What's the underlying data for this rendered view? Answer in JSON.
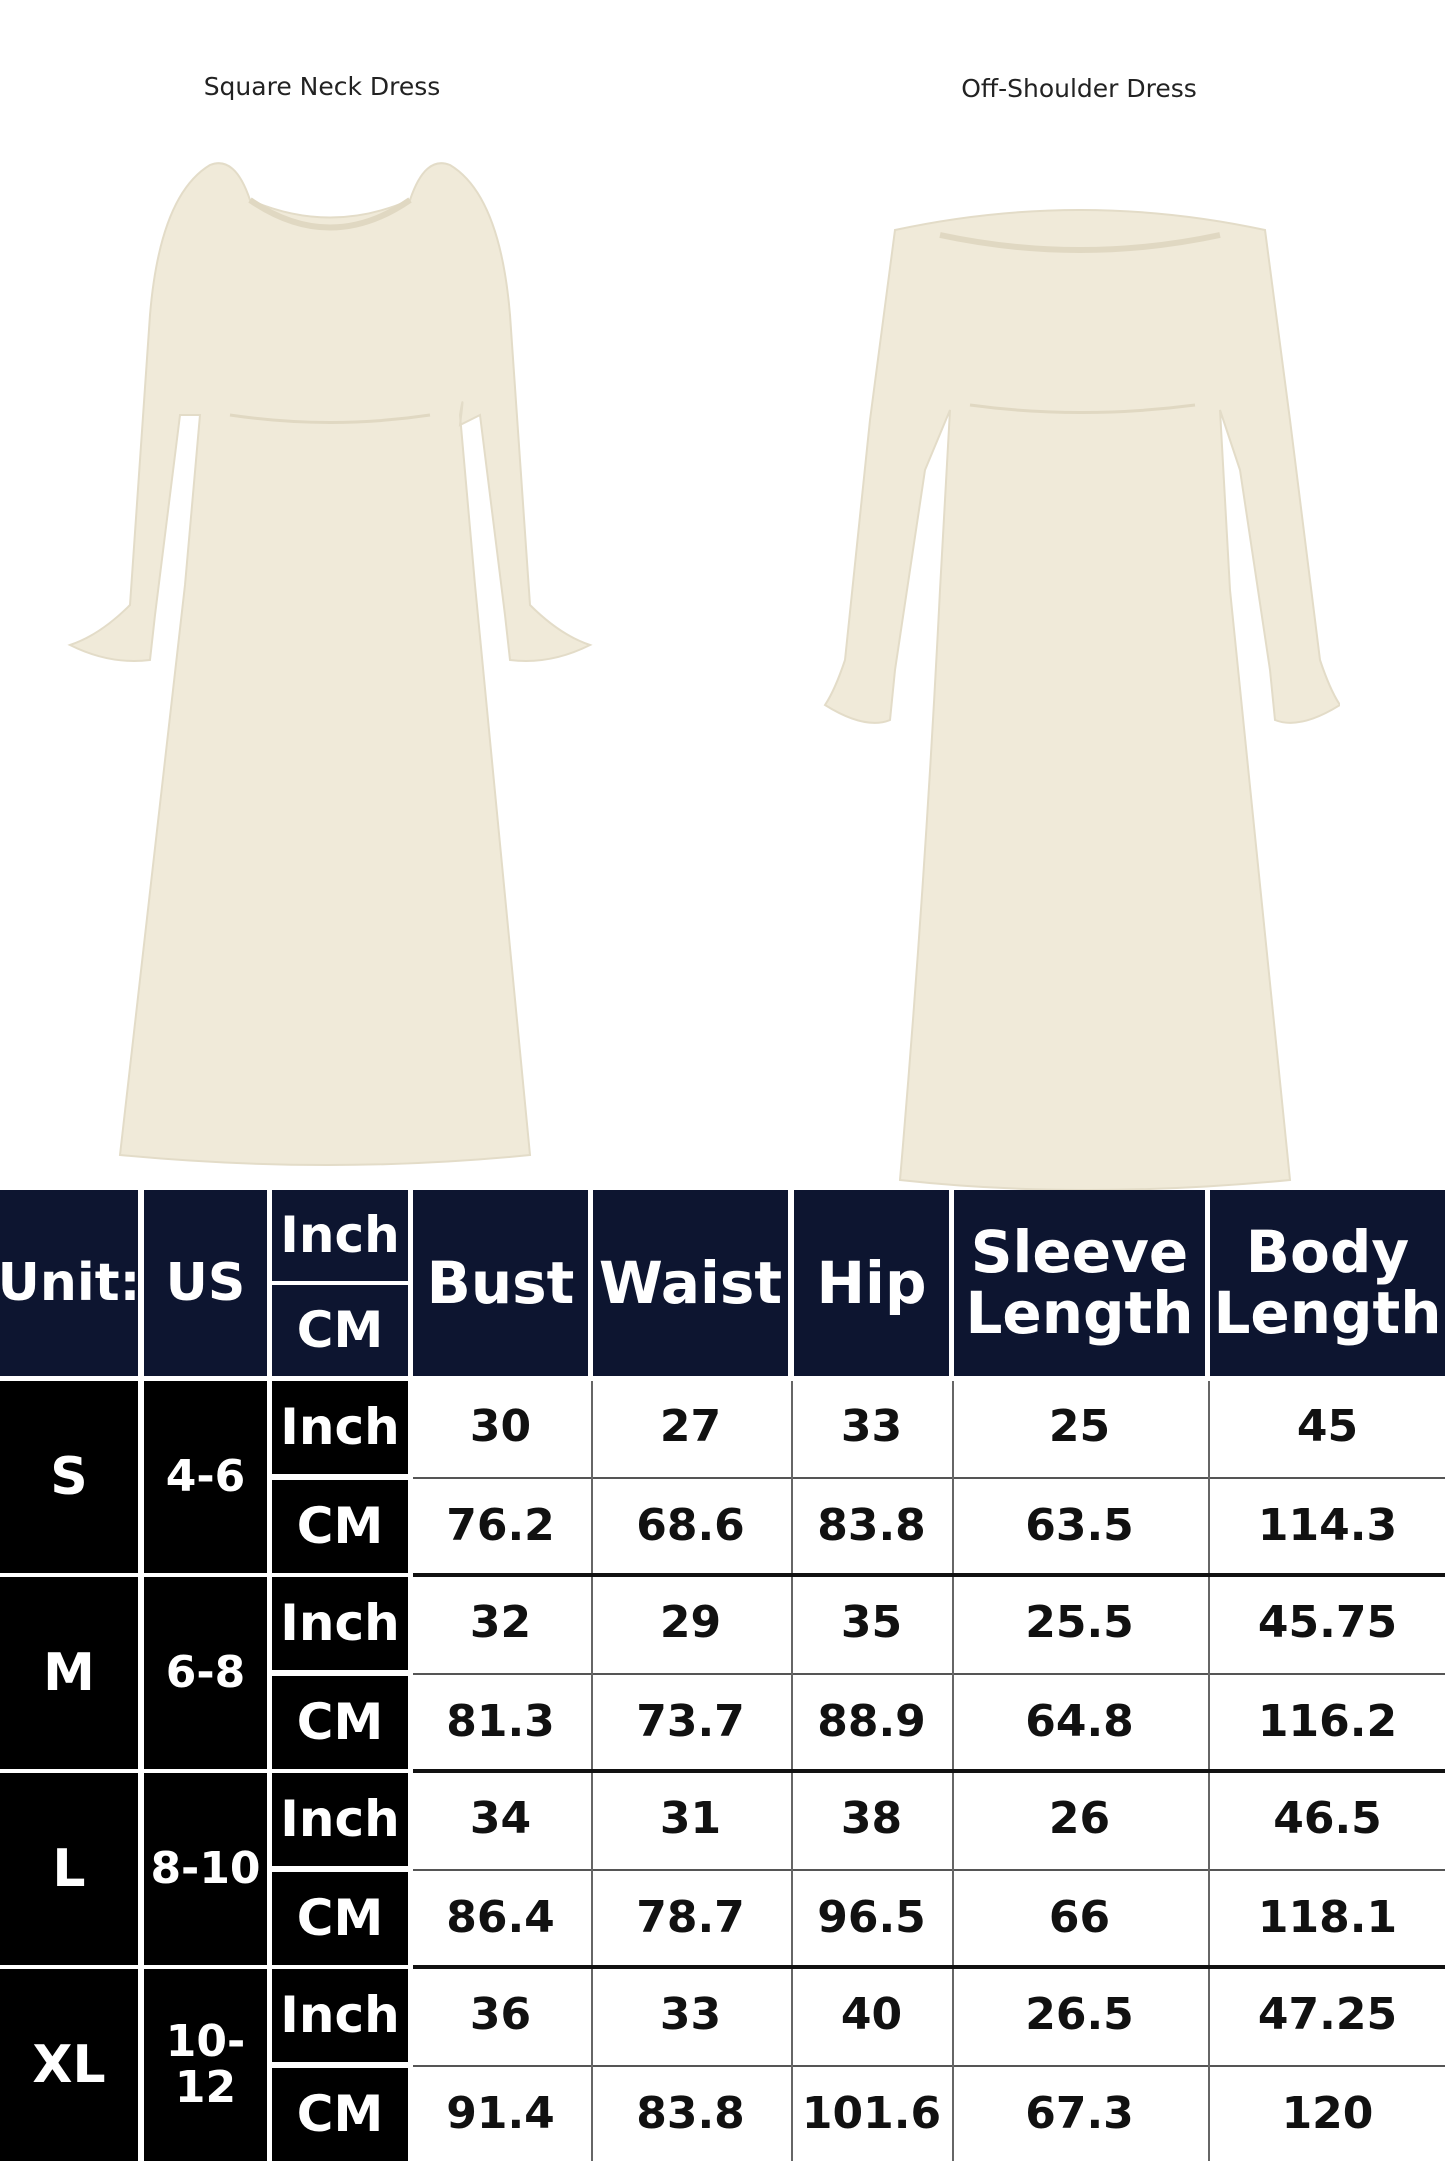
{
  "products": [
    {
      "title": "Square Neck Dress"
    },
    {
      "title": "Off-Shoulder Dress"
    }
  ],
  "colors": {
    "header_bg": "#0d1530",
    "label_bg": "#000000",
    "dress": "#f0ead9"
  },
  "table": {
    "headers": {
      "unit": "Unit:",
      "us": "US",
      "inch": "Inch",
      "cm": "CM",
      "bust": "Bust",
      "waist": "Waist",
      "hip": "Hip",
      "sleeve": "Sleeve Length",
      "body": "Body Length"
    },
    "sizes": [
      {
        "size": "S",
        "us": "4-6",
        "inch": {
          "label": "Inch",
          "values": [
            "30",
            "27",
            "33",
            "25",
            "45"
          ]
        },
        "cm": {
          "label": "CM",
          "values": [
            "76.2",
            "68.6",
            "83.8",
            "63.5",
            "114.3"
          ]
        }
      },
      {
        "size": "M",
        "us": "6-8",
        "inch": {
          "label": "Inch",
          "values": [
            "32",
            "29",
            "35",
            "25.5",
            "45.75"
          ]
        },
        "cm": {
          "label": "CM",
          "values": [
            "81.3",
            "73.7",
            "88.9",
            "64.8",
            "116.2"
          ]
        }
      },
      {
        "size": "L",
        "us": "8-10",
        "inch": {
          "label": "Inch",
          "values": [
            "34",
            "31",
            "38",
            "26",
            "46.5"
          ]
        },
        "cm": {
          "label": "CM",
          "values": [
            "86.4",
            "78.7",
            "96.5",
            "66",
            "118.1"
          ]
        }
      },
      {
        "size": "XL",
        "us": "10-12",
        "inch": {
          "label": "Inch",
          "values": [
            "36",
            "33",
            "40",
            "26.5",
            "47.25"
          ]
        },
        "cm": {
          "label": "CM",
          "values": [
            "91.4",
            "83.8",
            "101.6",
            "67.3",
            "120"
          ]
        }
      }
    ]
  }
}
